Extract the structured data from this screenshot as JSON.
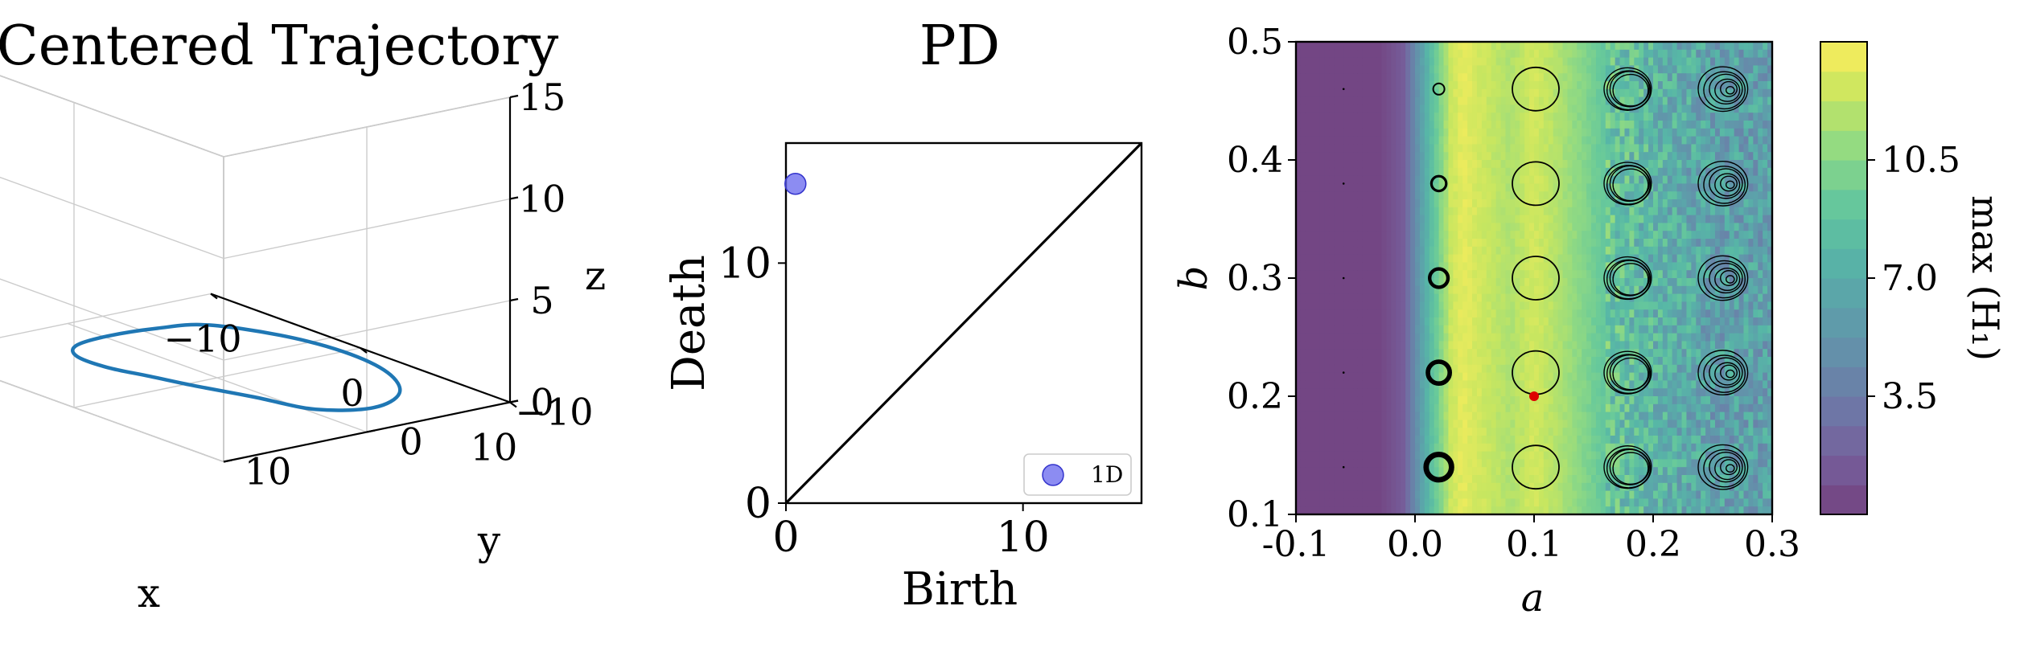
{
  "chart_data": [
    {
      "type": "line",
      "title": "Centered Trajectory",
      "xlabel": "x",
      "ylabel": "y",
      "zlabel": "z",
      "x_ticks": [
        "−10",
        "0",
        "10"
      ],
      "y_ticks": [
        "−10",
        "0",
        "10"
      ],
      "z_ticks": [
        "0",
        "5",
        "10",
        "15"
      ],
      "xlim": [
        -10,
        10
      ],
      "ylim": [
        -10,
        10
      ],
      "zlim": [
        0,
        15
      ],
      "grid": true,
      "series_color": "#1f77b4",
      "series": [
        {
          "x": [
            -5.5,
            -2.5,
            1.0,
            4.5,
            7.2,
            8.5,
            8.0,
            6.5,
            4.5,
            2.0,
            -1.0,
            -4.0,
            -6.0,
            -6.6,
            -6.3,
            -5.5
          ],
          "y": [
            -5.0,
            -7.0,
            -7.8,
            -7.2,
            -5.2,
            -2.0,
            1.5,
            4.2,
            6.2,
            6.8,
            6.6,
            5.6,
            3.6,
            0.8,
            -2.4,
            -5.0
          ],
          "z": [
            0.4,
            0.4,
            0.4,
            0.4,
            0.4,
            0.5,
            0.8,
            1.4,
            1.7,
            1.6,
            1.2,
            0.8,
            0.5,
            0.4,
            0.4,
            0.4
          ]
        }
      ]
    },
    {
      "type": "scatter",
      "title": "PD",
      "xlabel": "Birth",
      "ylabel": "Death",
      "xlim": [
        0,
        15
      ],
      "ylim": [
        0,
        15
      ],
      "x_ticks": [
        "0",
        "10"
      ],
      "y_ticks": [
        "0",
        "10"
      ],
      "diagonal": true,
      "legend_position": "lower-right",
      "series": [
        {
          "name": "1D",
          "color": "#6666ee",
          "points": [
            [
              0.4,
              13.3
            ]
          ]
        }
      ]
    },
    {
      "type": "heatmap",
      "xlabel": "a",
      "ylabel": "b",
      "xlim": [
        -0.1,
        0.3
      ],
      "ylim": [
        0.1,
        0.5
      ],
      "x_ticks": [
        "-0.1",
        "0.0",
        "0.1",
        "0.2",
        "0.3"
      ],
      "y_ticks": [
        "0.1",
        "0.2",
        "0.3",
        "0.4",
        "0.5"
      ],
      "colorbar": {
        "label": "max (H₁)",
        "ticks": [
          "3.5",
          "7.0",
          "10.5"
        ],
        "range": [
          0,
          14
        ],
        "colormap": [
          "#440154",
          "#482878",
          "#3e4989",
          "#31688e",
          "#26828e",
          "#1f9e89",
          "#35b779",
          "#6ece58",
          "#b5de2b",
          "#fde725"
        ]
      },
      "column_profile": {
        "a": [
          -0.1,
          -0.03,
          -0.01,
          0.0,
          0.01,
          0.02,
          0.03,
          0.04,
          0.06,
          0.08,
          0.1,
          0.12,
          0.14,
          0.16,
          0.2,
          0.25,
          0.3
        ],
        "value": [
          0.3,
          0.3,
          1.5,
          4.5,
          7.5,
          10.0,
          12.5,
          13.3,
          12.5,
          11.7,
          12.8,
          11.8,
          10.5,
          9.0,
          7.7,
          6.2,
          6.2
        ]
      },
      "highlight_point": {
        "a": 0.1,
        "b": 0.2,
        "color": "#dd0000"
      },
      "inset_a": [
        -0.06,
        0.02,
        0.1,
        0.18,
        0.26
      ],
      "inset_b": [
        0.14,
        0.22,
        0.3,
        0.38,
        0.46
      ]
    }
  ]
}
